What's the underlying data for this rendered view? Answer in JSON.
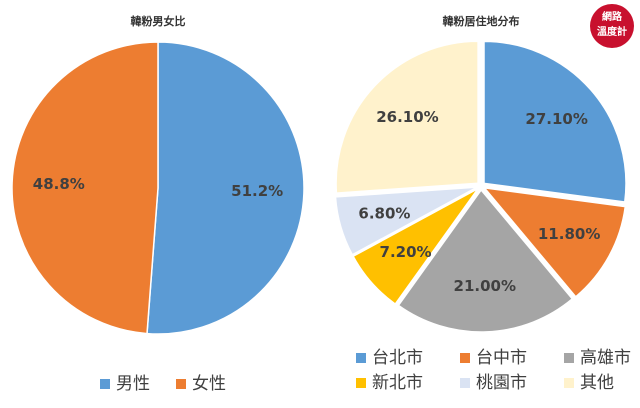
{
  "chart_data": [
    {
      "type": "pie",
      "title": "韓粉男女比",
      "categories": [
        "男性",
        "女性"
      ],
      "values": [
        51.2,
        48.8
      ],
      "value_labels": [
        "51.2%",
        "48.8%"
      ],
      "colors": [
        "#5b9bd5",
        "#ed7d31"
      ]
    },
    {
      "type": "pie",
      "title": "韓粉居住地分布",
      "categories": [
        "台北市",
        "台中市",
        "高雄市",
        "新北市",
        "桃園市",
        "其他"
      ],
      "values": [
        27.1,
        11.8,
        21.0,
        7.2,
        6.8,
        26.1
      ],
      "value_labels": [
        "27.10%",
        "11.80%",
        "21.00%",
        "7.20%",
        "6.80%",
        "26.10%"
      ],
      "colors": [
        "#5b9bd5",
        "#ed7d31",
        "#a5a5a5",
        "#ffc000",
        "#dae3f3",
        "#fff2cc"
      ]
    }
  ],
  "logo": {
    "line1": "網路",
    "line2": "溫度計"
  }
}
